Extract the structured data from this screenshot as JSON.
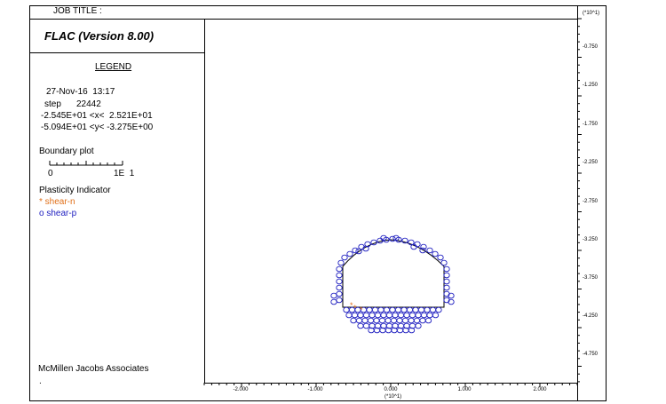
{
  "header": {
    "job_title": "JOB TITLE :",
    "program": "FLAC (Version 8.00)"
  },
  "legend": {
    "title": "LEGEND",
    "date_time": "27-Nov-16  13:17",
    "step_label": "step",
    "step_value": "22442",
    "x_range": "-2.545E+01 <x<  2.521E+01",
    "y_range": "-5.094E+01 <y< -3.275E+00",
    "boundary_label": "Boundary plot",
    "scale_left": "0",
    "scale_right": "1E  1",
    "plasticity_label": "Plasticity Indicator",
    "shear_n": "* shear-n",
    "shear_p": "o shear-p",
    "company": "McMillen Jacobs Associates",
    "footer_mark": "."
  },
  "colors": {
    "shear_n": "#e0701a",
    "shear_p": "#2020c0",
    "boundary": "#000000"
  },
  "axes": {
    "right_multiplier": "(*10^1)",
    "right_ticks": [
      "-0.750",
      "-1.250",
      "-1.750",
      "-2.250",
      "-2.750",
      "-3.250",
      "-3.750",
      "-4.250",
      "-4.750"
    ],
    "bottom_multiplier": "(*10^1)",
    "bottom_ticks": [
      "-2.000",
      "-1.000",
      "0.000",
      "1.000",
      "2.000"
    ]
  },
  "chart_data": {
    "type": "scatter",
    "title": "",
    "xlabel": "(*10^1)",
    "ylabel": "(*10^1)",
    "xlim": [
      -2.545,
      2.521
    ],
    "ylim": [
      -5.094,
      -0.3275
    ],
    "series": [
      {
        "name": "shear-p",
        "marker": "o"
      },
      {
        "name": "shear-n",
        "marker": "*"
      }
    ]
  }
}
